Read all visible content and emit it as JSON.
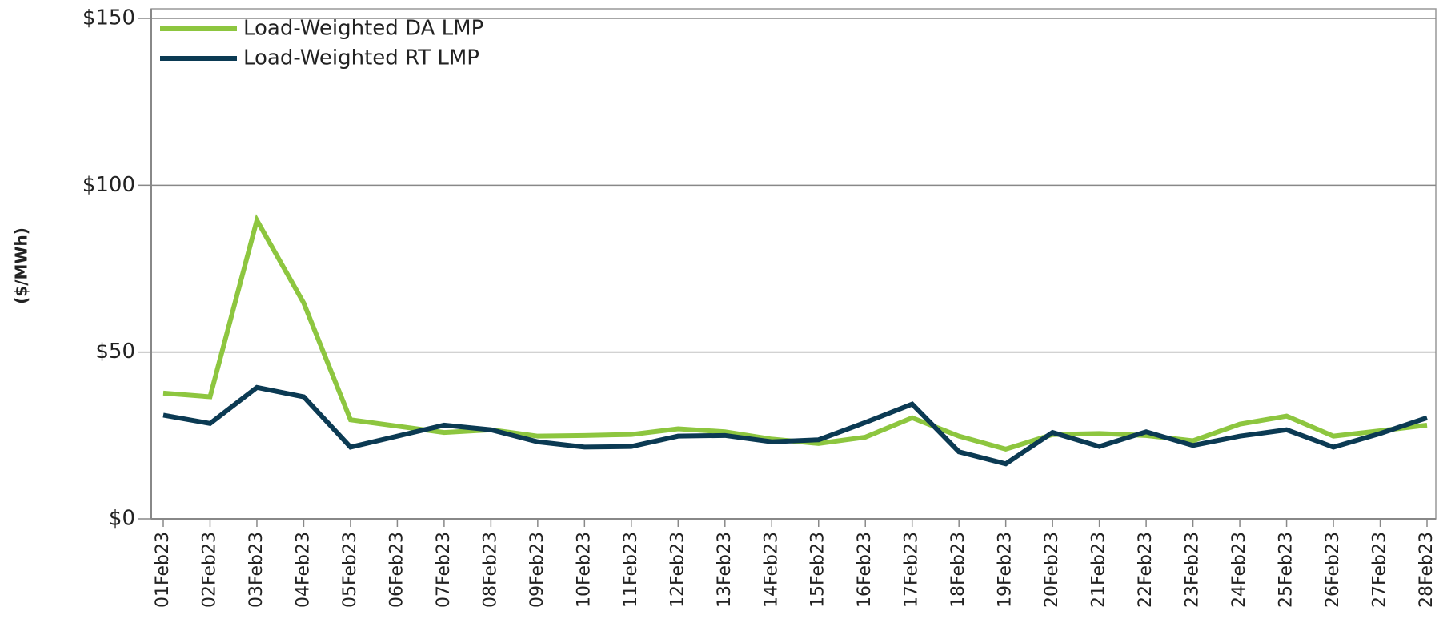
{
  "chart_data": {
    "type": "line",
    "y_label": "($/MWh)",
    "x": [
      "01Feb23",
      "02Feb23",
      "03Feb23",
      "04Feb23",
      "05Feb23",
      "06Feb23",
      "07Feb23",
      "08Feb23",
      "09Feb23",
      "10Feb23",
      "11Feb23",
      "12Feb23",
      "13Feb23",
      "14Feb23",
      "15Feb23",
      "16Feb23",
      "17Feb23",
      "18Feb23",
      "19Feb23",
      "20Feb23",
      "21Feb23",
      "22Feb23",
      "23Feb23",
      "24Feb23",
      "25Feb23",
      "26Feb23",
      "27Feb23",
      "28Feb23"
    ],
    "series": [
      {
        "name": "Load-Weighted DA LMP",
        "color": "#8dc63f",
        "values": [
          37.7,
          36.6,
          89.5,
          64.7,
          29.7,
          27.8,
          25.9,
          26.7,
          24.8,
          25.0,
          25.3,
          27.0,
          26.1,
          23.9,
          22.6,
          24.5,
          30.3,
          24.8,
          20.9,
          25.3,
          25.6,
          25.0,
          23.4,
          28.4,
          30.8,
          24.8,
          26.4,
          28.1
        ]
      },
      {
        "name": "Load-Weighted RT LMP",
        "color": "#0b3a53",
        "values": [
          31.1,
          28.6,
          39.4,
          36.6,
          21.5,
          24.8,
          28.1,
          26.7,
          23.1,
          21.5,
          21.7,
          24.8,
          25.0,
          23.1,
          23.7,
          28.9,
          34.4,
          20.1,
          16.5,
          25.9,
          21.7,
          26.1,
          22.0,
          24.8,
          26.7,
          21.5,
          25.6,
          30.3
        ]
      }
    ],
    "ylim": [
      0,
      150
    ],
    "yticks": [
      {
        "value": 0,
        "label": "$0"
      },
      {
        "value": 50,
        "label": "$50"
      },
      {
        "value": 100,
        "label": "$100"
      },
      {
        "value": 150,
        "label": "$150"
      }
    ],
    "grid": true,
    "legend": "top-left"
  }
}
